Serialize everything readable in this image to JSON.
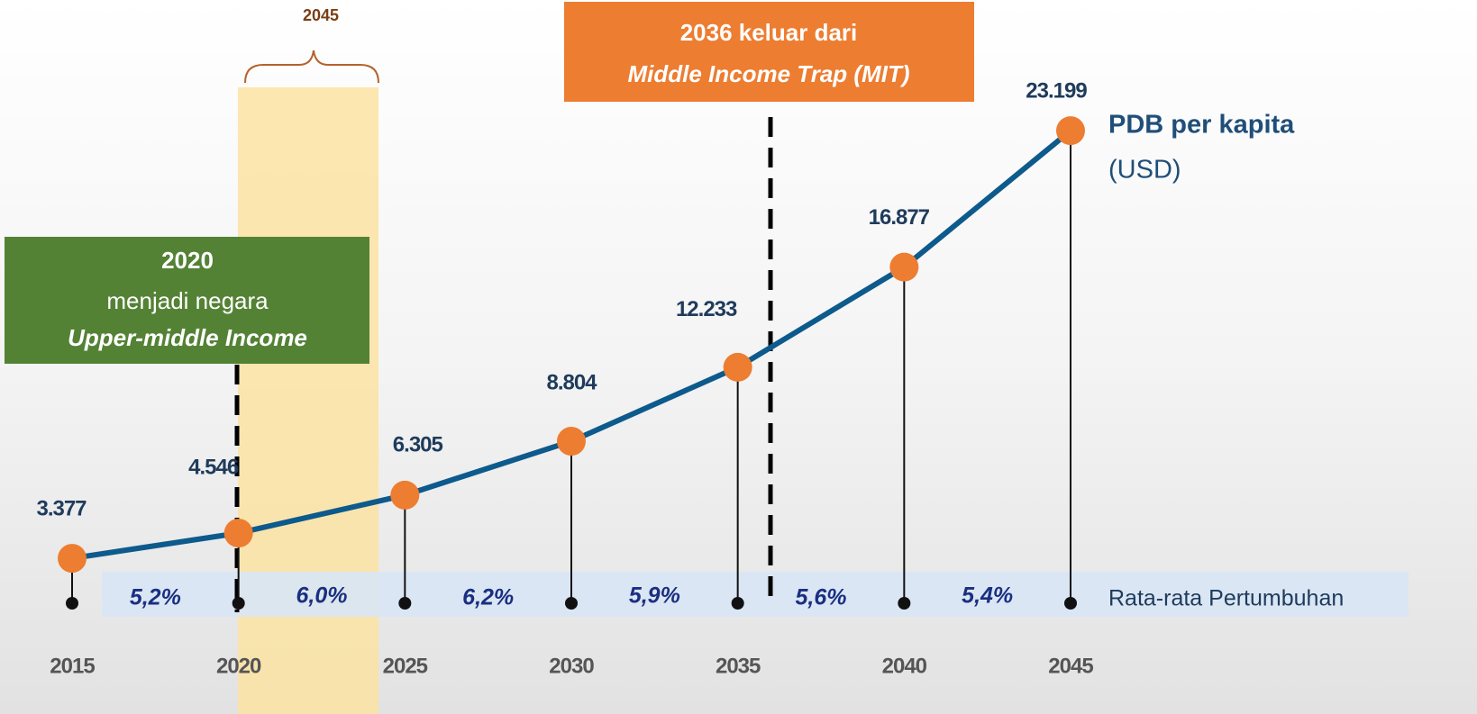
{
  "chart_data": {
    "type": "line",
    "x": [
      2015,
      2020,
      2025,
      2030,
      2035,
      2040,
      2045
    ],
    "xlim": [
      2015,
      2045
    ],
    "series": [
      {
        "name": "PDB per kapita",
        "color": "#0d5a8c",
        "values": [
          3377,
          4546,
          6305,
          8804,
          12233,
          16877,
          23199
        ],
        "value_labels": [
          "3.377",
          "4.546",
          "6.305",
          "8.804",
          "12.233",
          "16.877",
          "23.199"
        ]
      }
    ],
    "marker_color": "#ed7d31",
    "ylim": [
      0,
      25000
    ],
    "series_label": {
      "title": "PDB per kapita",
      "unit": "(USD)"
    },
    "growth_title": "Rata-rata Pertumbuhan",
    "growth_labels": [
      "5,2%",
      "6,0%",
      "6,2%",
      "5,9%",
      "5,6%",
      "5,4%"
    ],
    "annotations": {
      "top_year": "2045",
      "green_box": [
        "2020",
        "menjadi negara",
        "Upper-middle Income"
      ],
      "orange_box": [
        "2036 keluar dari",
        "Middle Income Trap (MIT)"
      ]
    }
  }
}
